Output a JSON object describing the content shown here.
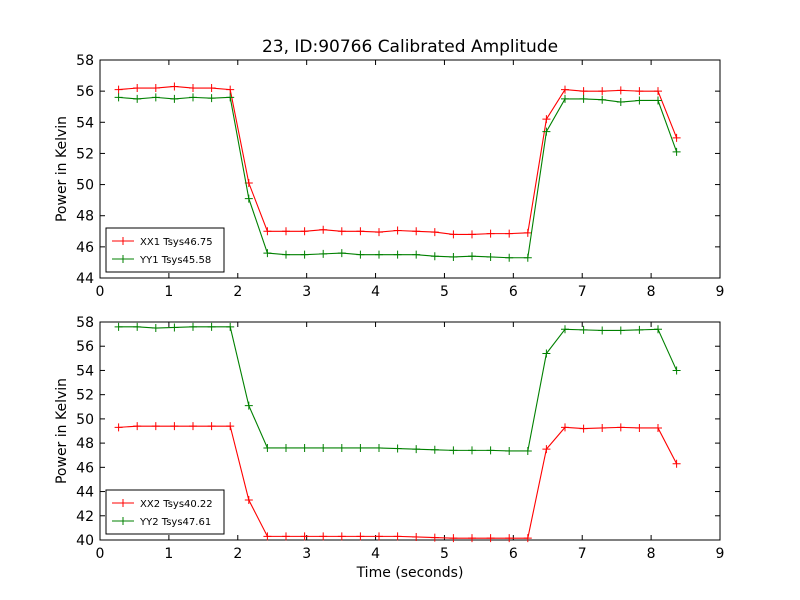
{
  "chart_data": [
    {
      "type": "line",
      "title": "23, ID:90766 Calibrated Amplitude",
      "xlabel": "",
      "ylabel": "Power in Kelvin",
      "xlim": [
        0,
        9
      ],
      "ylim": [
        44,
        58
      ],
      "x_ticks": [
        "0",
        "1",
        "2",
        "3",
        "4",
        "5",
        "6",
        "7",
        "8",
        "9"
      ],
      "y_ticks": [
        "44",
        "46",
        "48",
        "50",
        "52",
        "54",
        "56",
        "58"
      ],
      "x": [
        0.27,
        0.54,
        0.81,
        1.08,
        1.35,
        1.62,
        1.89,
        2.16,
        2.43,
        2.7,
        2.97,
        3.24,
        3.51,
        3.78,
        4.05,
        4.32,
        4.59,
        4.86,
        5.13,
        5.4,
        5.67,
        5.94,
        6.21,
        6.48,
        6.75,
        7.02,
        7.29,
        7.56,
        7.83,
        8.1,
        8.37
      ],
      "series": [
        {
          "name": "XX1 Tsys46.75",
          "color": "#ff0000",
          "values": [
            56.1,
            56.2,
            56.2,
            56.3,
            56.2,
            56.2,
            56.1,
            50.1,
            47.0,
            47.0,
            47.0,
            47.1,
            47.0,
            47.0,
            46.95,
            47.05,
            47.0,
            46.95,
            46.8,
            46.8,
            46.85,
            46.85,
            46.9,
            54.2,
            56.1,
            56.0,
            56.0,
            56.05,
            56.0,
            56.0,
            53.0
          ]
        },
        {
          "name": "YY1 Tsys45.58",
          "color": "#008000",
          "values": [
            55.6,
            55.5,
            55.6,
            55.5,
            55.6,
            55.55,
            55.6,
            49.1,
            45.6,
            45.5,
            45.5,
            45.55,
            45.6,
            45.5,
            45.5,
            45.5,
            45.5,
            45.4,
            45.35,
            45.4,
            45.35,
            45.3,
            45.3,
            53.4,
            55.5,
            55.5,
            55.45,
            55.3,
            55.4,
            55.4,
            52.1
          ]
        }
      ],
      "legend": "lower-left"
    },
    {
      "type": "line",
      "title": "",
      "xlabel": "Time (seconds)",
      "ylabel": "Power in Kelvin",
      "xlim": [
        0,
        9
      ],
      "ylim": [
        40,
        58
      ],
      "x_ticks": [
        "0",
        "1",
        "2",
        "3",
        "4",
        "5",
        "6",
        "7",
        "8",
        "9"
      ],
      "y_ticks": [
        "40",
        "42",
        "44",
        "46",
        "48",
        "50",
        "52",
        "54",
        "56",
        "58"
      ],
      "x": [
        0.27,
        0.54,
        0.81,
        1.08,
        1.35,
        1.62,
        1.89,
        2.16,
        2.43,
        2.7,
        2.97,
        3.24,
        3.51,
        3.78,
        4.05,
        4.32,
        4.59,
        4.86,
        5.13,
        5.4,
        5.67,
        5.94,
        6.21,
        6.48,
        6.75,
        7.02,
        7.29,
        7.56,
        7.83,
        8.1,
        8.37
      ],
      "series": [
        {
          "name": "XX2 Tsys40.22",
          "color": "#ff0000",
          "values": [
            49.3,
            49.4,
            49.4,
            49.4,
            49.4,
            49.4,
            49.4,
            43.3,
            40.3,
            40.3,
            40.3,
            40.3,
            40.3,
            40.3,
            40.3,
            40.3,
            40.25,
            40.2,
            40.15,
            40.15,
            40.15,
            40.15,
            40.15,
            47.5,
            49.3,
            49.2,
            49.25,
            49.3,
            49.25,
            49.25,
            46.3
          ]
        },
        {
          "name": "YY2 Tsys47.61",
          "color": "#008000",
          "values": [
            57.6,
            57.6,
            57.5,
            57.55,
            57.6,
            57.6,
            57.6,
            51.1,
            47.6,
            47.6,
            47.6,
            47.6,
            47.6,
            47.6,
            47.6,
            47.55,
            47.5,
            47.45,
            47.4,
            47.4,
            47.4,
            47.35,
            47.35,
            55.4,
            57.4,
            57.35,
            57.3,
            57.3,
            57.35,
            57.4,
            54.0
          ]
        }
      ],
      "legend": "lower-left"
    }
  ]
}
